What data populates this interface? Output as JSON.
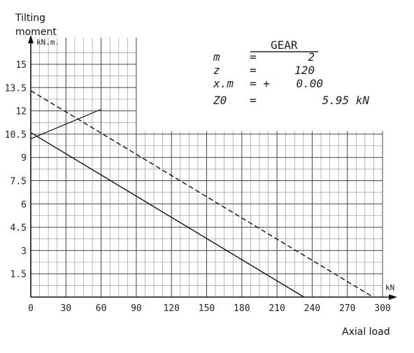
{
  "y_axis_title_line1": "Tilting",
  "y_axis_title_line2": "moment",
  "x_axis_title": "Axial load",
  "y_unit": "kN.m.",
  "x_unit": "kN",
  "gear": {
    "title": "GEAR",
    "rows": [
      {
        "name": "m",
        "op": "=",
        "value": "2"
      },
      {
        "name": "z",
        "op": "=",
        "value": "120"
      },
      {
        "name": "x.m",
        "op": "= +",
        "value": "0.00"
      },
      {
        "name": "Z0",
        "op": "=",
        "value": "5.95 kN"
      }
    ]
  },
  "chart_data": {
    "type": "line",
    "title": "",
    "xlabel": "Axial load",
    "ylabel": "Tilting moment",
    "x_unit": "kN",
    "y_unit": "kN.m.",
    "xlim": [
      0,
      300
    ],
    "ylim": [
      0,
      16
    ],
    "x_ticks": [
      0,
      30,
      60,
      90,
      120,
      150,
      180,
      210,
      240,
      270,
      300
    ],
    "y_ticks": [
      1.5,
      3,
      4.5,
      6,
      7.5,
      9,
      10.5,
      12,
      13.5,
      15
    ],
    "grid": true,
    "series": [
      {
        "style": "solid",
        "x": [
          0,
          233
        ],
        "y": [
          10.6,
          0
        ]
      },
      {
        "style": "dashed",
        "x": [
          0,
          292
        ],
        "y": [
          13.3,
          0
        ]
      }
    ],
    "annotations": [
      {
        "type": "leader-line",
        "from": {
          "x": 0,
          "y": 10.2
        },
        "to": {
          "x": 60,
          "y": 12.1
        }
      }
    ]
  }
}
